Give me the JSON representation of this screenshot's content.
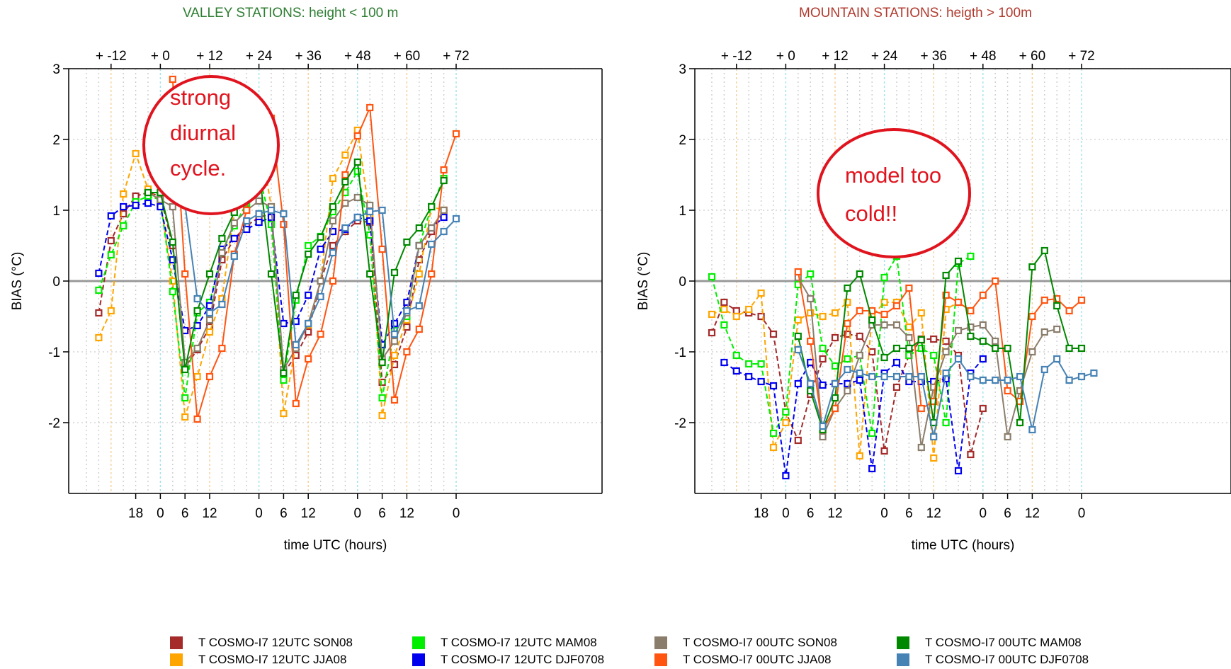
{
  "colors": {
    "valley_title": "#2e7d32",
    "mountain_title": "#b03a2e",
    "annotation": "#e0141e",
    "axis": "#000000",
    "zero_line": "#999999"
  },
  "legend": [
    {
      "label": "T COSMO-I7 12UTC SON08",
      "color": "#a52a2a"
    },
    {
      "label": "T COSMO-I7 12UTC JJA08",
      "color": "#ffa500"
    },
    {
      "label": "T COSMO-I7 12UTC MAM08",
      "color": "#00ee00"
    },
    {
      "label": "T COSMO-I7 12UTC DJF0708",
      "color": "#0000ee"
    },
    {
      "label": "T COSMO-I7 00UTC SON08",
      "color": "#8b7d6b"
    },
    {
      "label": "T COSMO-I7 00UTC JJA08",
      "color": "#ff5511"
    },
    {
      "label": "T COSMO-I7 00UTC MAM08",
      "color": "#008800"
    },
    {
      "label": "T COSMO-I7 00UTC DJF0708",
      "color": "#4682b4"
    }
  ],
  "chart_data": [
    {
      "type": "line",
      "title": "VALLEY STATIONS: height < 100 m",
      "xlabel": "time UTC (hours)",
      "ylabel": "BIAS (°C)",
      "ylim": [
        -3,
        3
      ],
      "y_ticks": [
        "3",
        "2",
        "1",
        "0",
        "-1",
        "-2"
      ],
      "top_ticks": [
        "+ -12",
        "+ 0",
        "+ 12",
        "+ 24",
        "+ 36",
        "+ 48",
        "+ 60",
        "+ 72"
      ],
      "bottom_ticks": [
        "18",
        "0",
        "6",
        "12",
        "0",
        "6",
        "12",
        "0",
        "6",
        "12",
        "0"
      ],
      "annotation": [
        "strong",
        "diurnal",
        "cycle."
      ],
      "series": [
        {
          "name": "T COSMO-I7 12UTC SON08",
          "start": -15,
          "values": [
            -0.45,
            0.57,
            0.95,
            1.2,
            1.25,
            1.2,
            0.5,
            -1.22,
            -0.97,
            -0.65,
            0.3,
            0.6,
            0.78,
            0.9,
            0.95,
            -1.3,
            -1.05,
            -0.72,
            0.0,
            0.5,
            0.7,
            0.85,
            0.83,
            -1.43,
            -1.18,
            -0.65,
            0.3,
            0.7,
            1.0
          ]
        },
        {
          "name": "T COSMO-I7 12UTC JJA08",
          "start": -15,
          "values": [
            -0.8,
            -0.42,
            1.23,
            1.8,
            1.3,
            1.1,
            0.0,
            -1.92,
            -1.35,
            -0.72,
            -0.25,
            1.0,
            1.8,
            2.07,
            1.05,
            -1.87,
            -0.9,
            -0.62,
            0.0,
            1.45,
            1.78,
            2.13,
            0.9,
            -1.9,
            -1.05,
            -0.55,
            0.1,
            1.05,
            1.0
          ]
        },
        {
          "name": "T COSMO-I7 12UTC MAM08",
          "start": -15,
          "values": [
            -0.13,
            0.37,
            0.78,
            1.12,
            1.2,
            1.15,
            -0.15,
            -1.65,
            -0.45,
            -0.3,
            0.4,
            0.78,
            1.1,
            1.5,
            0.8,
            -1.4,
            -0.27,
            0.5,
            0.63,
            0.98,
            1.25,
            1.55,
            0.65,
            -1.65,
            -0.7,
            -0.5,
            0.5,
            1.05,
            1.45
          ]
        },
        {
          "name": "T COSMO-I7 12UTC DJF0708",
          "start": -15,
          "values": [
            0.11,
            0.92,
            1.05,
            1.07,
            1.1,
            1.05,
            0.3,
            -0.7,
            -0.63,
            -0.35,
            0.45,
            0.6,
            0.73,
            0.83,
            0.9,
            -0.6,
            -0.57,
            -0.2,
            0.45,
            0.7,
            0.73,
            0.9,
            0.85,
            -0.9,
            -0.6,
            -0.3,
            0.5,
            0.75,
            0.9
          ]
        },
        {
          "name": "T COSMO-I7 00UTC SON08",
          "start": -3,
          "values": [
            1.25,
            1.15,
            1.05,
            -1.15,
            -0.95,
            -0.55,
            0.4,
            0.82,
            1.0,
            1.13,
            1.05,
            -1.25,
            -0.95,
            -0.6,
            0.0,
            0.85,
            1.1,
            1.18,
            1.07,
            -1.1,
            -0.85,
            -0.45,
            0.5,
            0.75,
            1.0
          ]
        },
        {
          "name": "T COSMO-I7 00UTC JJA08",
          "start": 3,
          "values": [
            2.85,
            0.1,
            -1.95,
            -1.35,
            -0.95,
            0.38,
            1.0,
            1.95,
            2.3,
            0.8,
            -1.73,
            -1.1,
            -0.75,
            0.0,
            1.5,
            2.05,
            2.45,
            0.45,
            -1.68,
            -1.0,
            -0.68,
            0.1,
            1.57,
            2.08
          ]
        },
        {
          "name": "T COSMO-I7 00UTC MAM08",
          "start": -3,
          "values": [
            1.25,
            1.25,
            0.55,
            -1.25,
            -0.42,
            0.1,
            0.6,
            0.97,
            1.3,
            1.58,
            0.1,
            -1.3,
            -0.2,
            0.38,
            0.62,
            1.05,
            1.4,
            1.68,
            0.1,
            -1.15,
            0.12,
            0.55,
            0.75,
            1.05,
            1.42
          ]
        },
        {
          "name": "T COSMO-I7 00UTC DJF0708",
          "start": 6,
          "values": [
            1.08,
            -0.25,
            -0.45,
            -0.33,
            0.35,
            0.85,
            0.95,
            1.0,
            0.95,
            -0.9,
            -0.6,
            -0.22,
            0.4,
            0.75,
            0.9,
            0.98,
            1.0,
            -0.75,
            -0.42,
            -0.35,
            0.52,
            0.7,
            0.88
          ]
        }
      ]
    },
    {
      "type": "line",
      "title": "MOUNTAIN STATIONS: heigth > 100m",
      "xlabel": "time UTC (hours)",
      "ylabel": "BIAS (°C)",
      "ylim": [
        -3,
        3
      ],
      "y_ticks": [
        "3",
        "2",
        "1",
        "0",
        "-1",
        "-2"
      ],
      "top_ticks": [
        "+ -12",
        "+ 0",
        "+ 12",
        "+ 24",
        "+ 36",
        "+ 48",
        "+ 60",
        "+ 72"
      ],
      "bottom_ticks": [
        "18",
        "0",
        "6",
        "12",
        "0",
        "6",
        "12",
        "0",
        "6",
        "12",
        "0"
      ],
      "annotation": [
        "model too",
        "cold!!"
      ],
      "series": [
        {
          "name": "T COSMO-I7 12UTC SON08",
          "start": -18,
          "values": [
            -0.73,
            -0.3,
            -0.42,
            -0.45,
            -0.5,
            -0.75,
            -1.85,
            -2.25,
            -1.6,
            -1.1,
            -0.8,
            -0.75,
            -0.78,
            -1.0,
            -2.4,
            -1.5,
            -1.05,
            -0.82,
            -0.82,
            -0.85,
            -1.05,
            -2.45,
            -1.8
          ]
        },
        {
          "name": "T COSMO-I7 12UTC JJA08",
          "start": -18,
          "values": [
            -0.47,
            -0.4,
            -0.5,
            -0.4,
            -0.17,
            -2.35,
            -2.0,
            -0.55,
            -0.45,
            -0.5,
            -0.45,
            -0.3,
            -2.47,
            -0.5,
            -0.3,
            -0.3,
            -0.65,
            -0.45,
            -2.5,
            -0.4,
            -0.3
          ]
        },
        {
          "name": "T COSMO-I7 12UTC MAM08",
          "start": -18,
          "values": [
            0.06,
            -0.62,
            -1.05,
            -1.17,
            -1.17,
            -2.15,
            -1.85,
            -0.05,
            0.1,
            -0.95,
            -1.2,
            -1.1,
            -1.05,
            -2.15,
            0.05,
            0.35,
            -1.05,
            -0.95,
            -1.05,
            -2.0,
            0.25,
            0.35
          ]
        },
        {
          "name": "T COSMO-I7 12UTC DJF0708",
          "start": -15,
          "values": [
            -1.15,
            -1.27,
            -1.35,
            -1.42,
            -1.48,
            -2.75,
            -1.45,
            -1.15,
            -1.47,
            -1.45,
            -1.45,
            -1.4,
            -2.65,
            -1.3,
            -1.15,
            -1.42,
            -1.42,
            -1.42,
            -1.38,
            -2.68,
            -1.3,
            -1.1
          ]
        },
        {
          "name": "T COSMO-I7 00UTC SON08",
          "start": 3,
          "values": [
            0.05,
            -0.25,
            -2.2,
            -1.8,
            -1.55,
            -1.05,
            -0.62,
            -0.62,
            -0.62,
            -0.8,
            -2.35,
            -1.5,
            -1.0,
            -0.7,
            -0.65,
            -0.62,
            -0.85,
            -2.2,
            -1.55,
            -1.0,
            -0.72,
            -0.68
          ]
        },
        {
          "name": "T COSMO-I7 00UTC JJA08",
          "start": 3,
          "values": [
            0.13,
            -0.85,
            -2.1,
            -1.8,
            -0.6,
            -0.42,
            -0.42,
            -0.47,
            -0.35,
            -0.1,
            -1.8,
            -1.7,
            -0.2,
            -0.3,
            -0.42,
            -0.2,
            0.0,
            -1.55,
            -1.7,
            -0.5,
            -0.27,
            -0.25,
            -0.42,
            -0.27
          ]
        },
        {
          "name": "T COSMO-I7 00UTC MAM08",
          "start": 3,
          "values": [
            -0.78,
            -1.55,
            -2.1,
            -1.65,
            -0.1,
            0.1,
            -0.55,
            -1.08,
            -0.95,
            -0.95,
            -0.83,
            -2.0,
            0.08,
            0.28,
            -0.78,
            -0.85,
            -0.95,
            -0.95,
            -2.0,
            0.2,
            0.43,
            -0.35,
            -0.95,
            -0.95
          ]
        },
        {
          "name": "T COSMO-I7 00UTC DJF0708",
          "start": 3,
          "values": [
            -0.97,
            -1.45,
            -2.05,
            -1.45,
            -1.25,
            -1.3,
            -1.35,
            -1.35,
            -1.35,
            -1.35,
            -1.35,
            -2.2,
            -1.3,
            -1.1,
            -1.35,
            -1.4,
            -1.4,
            -1.4,
            -1.35,
            -2.1,
            -1.25,
            -1.1,
            -1.4,
            -1.35,
            -1.3
          ]
        }
      ]
    }
  ]
}
